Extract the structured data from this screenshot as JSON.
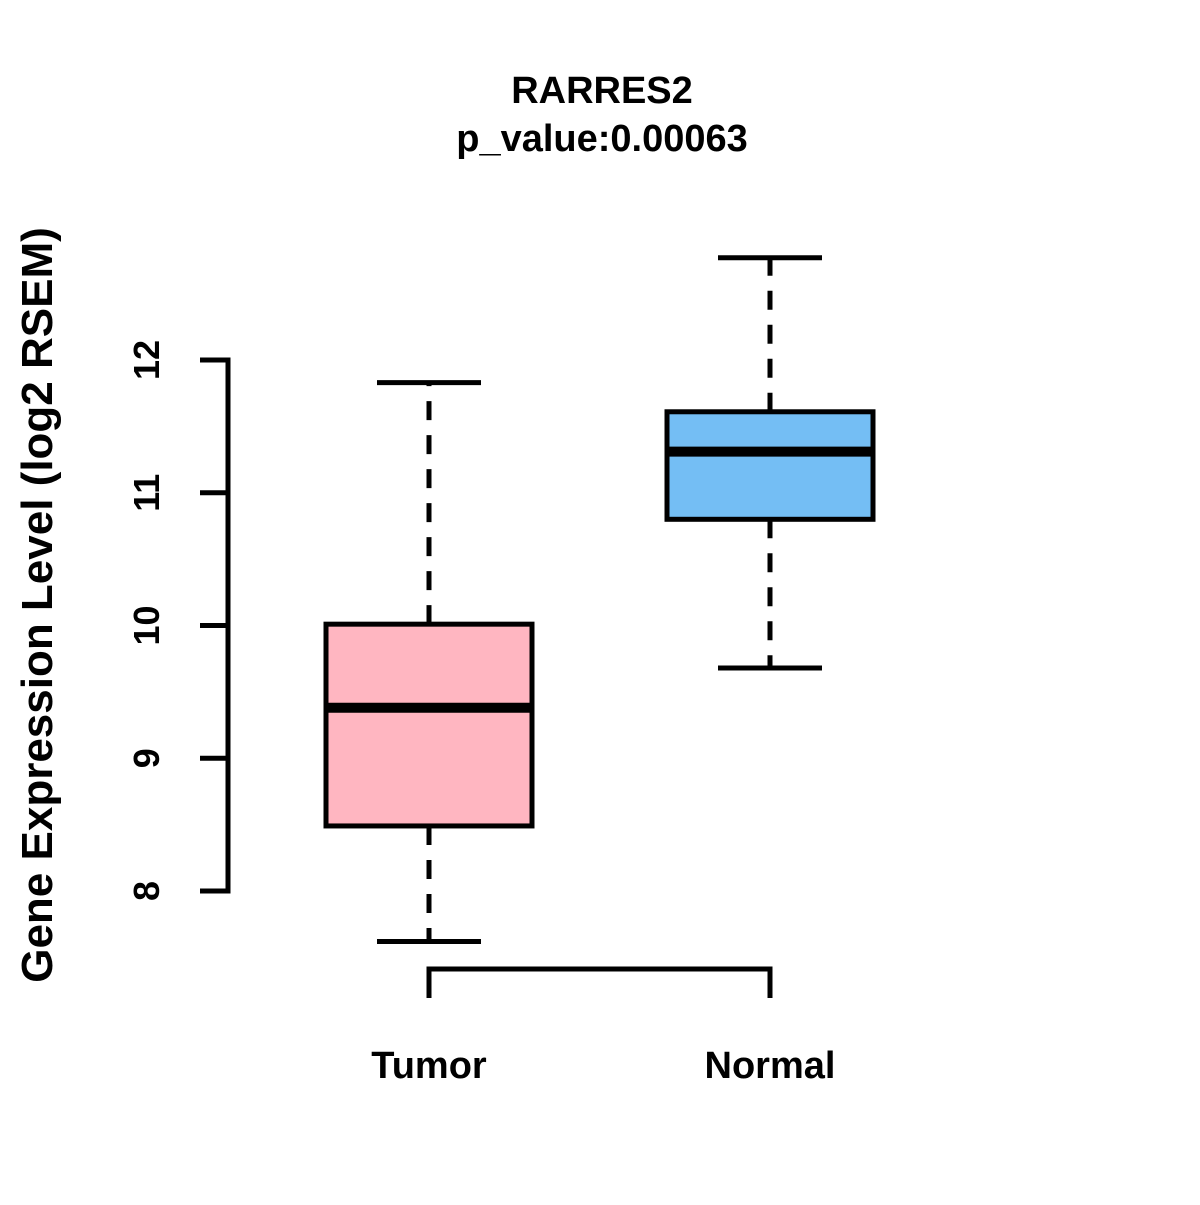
{
  "chart_data": {
    "type": "box",
    "title": "RARRES2",
    "subtitle": "p_value:0.00063",
    "ylabel": "Gene Expression Level (log2 RSEM)",
    "yticks": [
      8,
      9,
      10,
      11,
      12
    ],
    "ylim": [
      7.4,
      13.0
    ],
    "axis_range": [
      8,
      12
    ],
    "grid": false,
    "legend": "none",
    "categories": [
      "Tumor",
      "Normal"
    ],
    "groups": [
      {
        "label": "Tumor",
        "color": "#FFB6C1",
        "lower_whisker": 7.62,
        "q1": 8.49,
        "median": 9.38,
        "q3": 10.01,
        "upper_whisker": 11.83,
        "outliers": []
      },
      {
        "label": "Normal",
        "color": "#74BEF4",
        "lower_whisker": 9.68,
        "q1": 10.8,
        "median": 11.31,
        "q3": 11.61,
        "upper_whisker": 12.77,
        "outliers": []
      }
    ],
    "colors": {
      "stroke": "#000000",
      "background": "#ffffff"
    }
  }
}
